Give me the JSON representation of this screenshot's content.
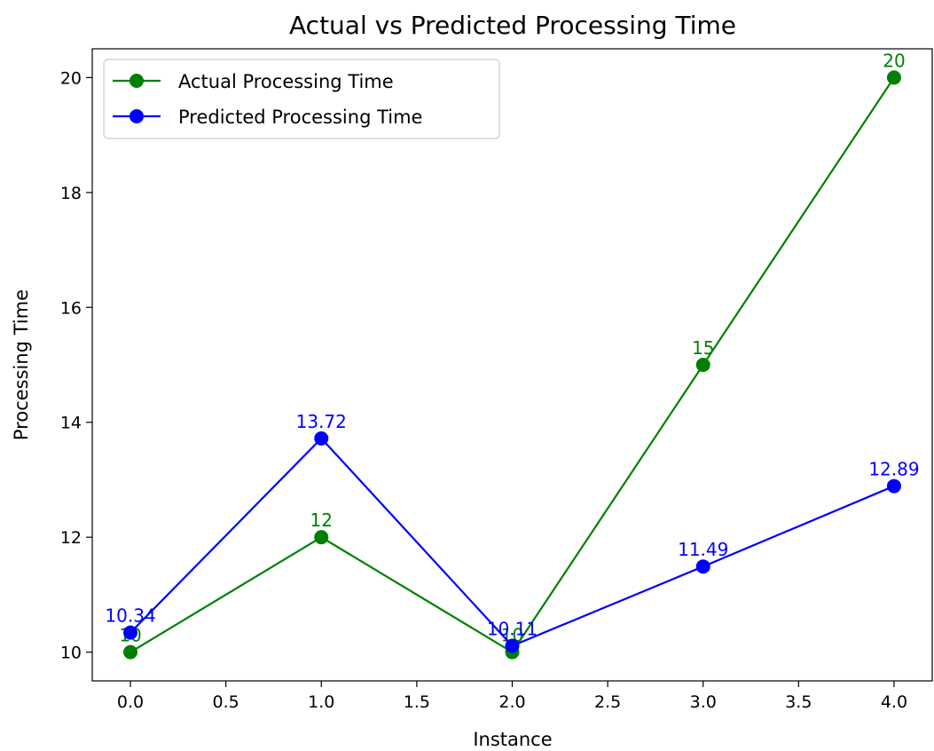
{
  "chart_data": {
    "type": "line",
    "title": "Actual vs Predicted Processing Time",
    "xlabel": "Instance",
    "ylabel": "Processing Time",
    "x": [
      0,
      1,
      2,
      3,
      4
    ],
    "xlim": [
      -0.2,
      4.2
    ],
    "ylim": [
      9.5,
      20.5
    ],
    "xticks": [
      0.0,
      0.5,
      1.0,
      1.5,
      2.0,
      2.5,
      3.0,
      3.5,
      4.0
    ],
    "xtick_labels": [
      "0.0",
      "0.5",
      "1.0",
      "1.5",
      "2.0",
      "2.5",
      "3.0",
      "3.5",
      "4.0"
    ],
    "yticks": [
      10,
      12,
      14,
      16,
      18,
      20
    ],
    "ytick_labels": [
      "10",
      "12",
      "14",
      "16",
      "18",
      "20"
    ],
    "grid": false,
    "legend_position": "upper-left",
    "series": [
      {
        "name": "Actual Processing Time",
        "color": "#008000",
        "marker": "circle",
        "values": [
          10,
          12,
          10,
          15,
          20
        ],
        "labels": [
          "10",
          "12",
          "10",
          "15",
          "20"
        ]
      },
      {
        "name": "Predicted Processing Time",
        "color": "#0000ff",
        "marker": "circle",
        "values": [
          10.34,
          13.72,
          10.11,
          11.49,
          12.89
        ],
        "labels": [
          "10.34",
          "13.72",
          "10.11",
          "11.49",
          "12.89"
        ]
      }
    ]
  }
}
